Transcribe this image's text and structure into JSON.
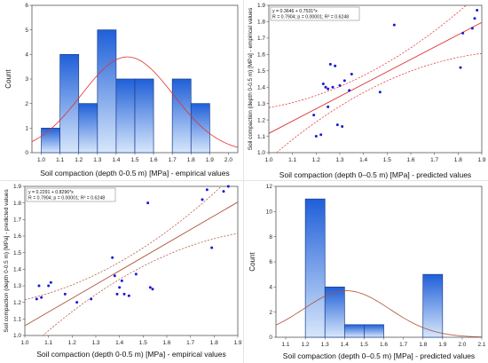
{
  "chart_data": [
    {
      "id": "p1",
      "type": "bar",
      "subtype": "histogram",
      "title": "",
      "xlabel": "Soil compaction (depth 0-0.5 m) [MPa] - empirical values",
      "ylabel": "Count",
      "xlim": [
        0.95,
        2.05
      ],
      "ylim": [
        0,
        6
      ],
      "xticks": [
        "1.0",
        "1.1",
        "1.2",
        "1.3",
        "1.4",
        "1.5",
        "1.6",
        "1.7",
        "1.8",
        "1.9",
        "2.0"
      ],
      "yticks": [
        "0",
        "1",
        "2",
        "3",
        "4",
        "5",
        "6"
      ],
      "bins": [
        {
          "x0": 1.0,
          "x1": 1.1,
          "count": 1
        },
        {
          "x0": 1.1,
          "x1": 1.2,
          "count": 4
        },
        {
          "x0": 1.2,
          "x1": 1.3,
          "count": 2
        },
        {
          "x0": 1.3,
          "x1": 1.4,
          "count": 5
        },
        {
          "x0": 1.4,
          "x1": 1.5,
          "count": 3
        },
        {
          "x0": 1.5,
          "x1": 1.6,
          "count": 3
        },
        {
          "x0": 1.6,
          "x1": 1.7,
          "count": 0
        },
        {
          "x0": 1.7,
          "x1": 1.8,
          "count": 3
        },
        {
          "x0": 1.8,
          "x1": 1.9,
          "count": 2
        }
      ],
      "normal_curve": {
        "mean": 1.46,
        "sd": 0.245,
        "peak": 3.9
      },
      "colors": {
        "bar_top": "#1f5fd8",
        "bar_bottom": "#d7e7fb",
        "curve": "#e03030"
      }
    },
    {
      "id": "p2",
      "type": "scatter",
      "xlabel": "Soil compaction (depth 0–0.5 m) [MPa] - predicted values",
      "ylabel": "Soil compaction (depth 0-0.5 m) [MPa] - empirical values",
      "xlim": [
        1.0,
        1.9
      ],
      "ylim": [
        1.0,
        1.9
      ],
      "xticks": [
        "1.0",
        "1.1",
        "1.2",
        "1.3",
        "1.4",
        "1.5",
        "1.6",
        "1.7",
        "1.8",
        "1.9"
      ],
      "yticks": [
        "1.0",
        "1.1",
        "1.2",
        "1.3",
        "1.4",
        "1.5",
        "1.6",
        "1.7",
        "1.8",
        "1.9"
      ],
      "annotation": [
        "y = 0.3646 + 0.7531*x",
        "R = 0.7904; p = 0.00001; R² = 0.6248"
      ],
      "fit": {
        "intercept": 0.3646,
        "slope": 0.7531
      },
      "ci_band": 0.115,
      "points": [
        [
          1.19,
          1.23
        ],
        [
          1.2,
          1.1
        ],
        [
          1.22,
          1.11
        ],
        [
          1.23,
          1.42
        ],
        [
          1.24,
          1.4
        ],
        [
          1.25,
          1.39
        ],
        [
          1.25,
          1.28
        ],
        [
          1.26,
          1.54
        ],
        [
          1.27,
          1.4
        ],
        [
          1.28,
          1.53
        ],
        [
          1.29,
          1.17
        ],
        [
          1.3,
          1.41
        ],
        [
          1.31,
          1.16
        ],
        [
          1.32,
          1.44
        ],
        [
          1.34,
          1.38
        ],
        [
          1.35,
          1.48
        ],
        [
          1.47,
          1.37
        ],
        [
          1.53,
          1.78
        ],
        [
          1.81,
          1.52
        ],
        [
          1.82,
          1.73
        ],
        [
          1.86,
          1.76
        ],
        [
          1.87,
          1.82
        ],
        [
          1.88,
          1.87
        ]
      ],
      "colors": {
        "points": "#1a1ad8",
        "line": "#e03030",
        "ci": "#e03030"
      }
    },
    {
      "id": "p3",
      "type": "scatter",
      "xlabel": "Soil compaction (depth 0-0.5 m) [MPa] - empirical values",
      "ylabel": "Soil compaction (depth 0-0.5 m) [MPa] - predicted values",
      "xlim": [
        1.0,
        1.9
      ],
      "ylim": [
        1.0,
        1.9
      ],
      "xticks": [
        "1.0",
        "1.1",
        "1.2",
        "1.3",
        "1.4",
        "1.5",
        "1.6",
        "1.7",
        "1.8",
        "1.9"
      ],
      "yticks": [
        "1.0",
        "1.1",
        "1.2",
        "1.3",
        "1.4",
        "1.5",
        "1.6",
        "1.7",
        "1.8",
        "1.9"
      ],
      "annotation": [
        "y = 0.2291 + 0.8296*x",
        "R = 0.7904; p = 0.00001; R² = 0.6248"
      ],
      "fit": {
        "intercept": 0.2291,
        "slope": 0.8296
      },
      "ci_band": 0.115,
      "points": [
        [
          1.05,
          1.22
        ],
        [
          1.06,
          1.3
        ],
        [
          1.07,
          1.23
        ],
        [
          1.1,
          1.3
        ],
        [
          1.11,
          1.32
        ],
        [
          1.17,
          1.25
        ],
        [
          1.22,
          1.2
        ],
        [
          1.28,
          1.22
        ],
        [
          1.37,
          1.47
        ],
        [
          1.38,
          1.36
        ],
        [
          1.39,
          1.25
        ],
        [
          1.4,
          1.29
        ],
        [
          1.41,
          1.33
        ],
        [
          1.42,
          1.25
        ],
        [
          1.44,
          1.24
        ],
        [
          1.47,
          1.37
        ],
        [
          1.52,
          1.8
        ],
        [
          1.53,
          1.29
        ],
        [
          1.54,
          1.28
        ],
        [
          1.75,
          1.82
        ],
        [
          1.77,
          1.88
        ],
        [
          1.79,
          1.53
        ],
        [
          1.84,
          1.87
        ],
        [
          1.86,
          1.9
        ]
      ],
      "colors": {
        "points": "#1a1ad8",
        "line": "#b0523a",
        "ci": "#b0523a"
      }
    },
    {
      "id": "p4",
      "type": "bar",
      "subtype": "histogram",
      "title": "",
      "xlabel": "Soil compaction (depth 0–0.5 m) [MPa] - predicted values",
      "ylabel": "Count",
      "xlim": [
        1.05,
        2.1
      ],
      "ylim": [
        0,
        12
      ],
      "xticks": [
        "1.1",
        "1.2",
        "1.3",
        "1.4",
        "1.5",
        "1.6",
        "1.7",
        "1.8",
        "1.9",
        "2.0",
        "2.1"
      ],
      "yticks": [
        "0",
        "2",
        "4",
        "6",
        "8",
        "10",
        "12"
      ],
      "bins": [
        {
          "x0": 1.2,
          "x1": 1.3,
          "count": 11
        },
        {
          "x0": 1.3,
          "x1": 1.4,
          "count": 4
        },
        {
          "x0": 1.4,
          "x1": 1.5,
          "count": 1
        },
        {
          "x0": 1.5,
          "x1": 1.6,
          "count": 1
        },
        {
          "x0": 1.8,
          "x1": 1.9,
          "count": 5
        }
      ],
      "normal_curve": {
        "mean": 1.41,
        "sd": 0.22,
        "peak": 3.7
      },
      "colors": {
        "bar_top": "#1f5fd8",
        "bar_bottom": "#d7e7fb",
        "curve": "#b0523a"
      }
    }
  ]
}
